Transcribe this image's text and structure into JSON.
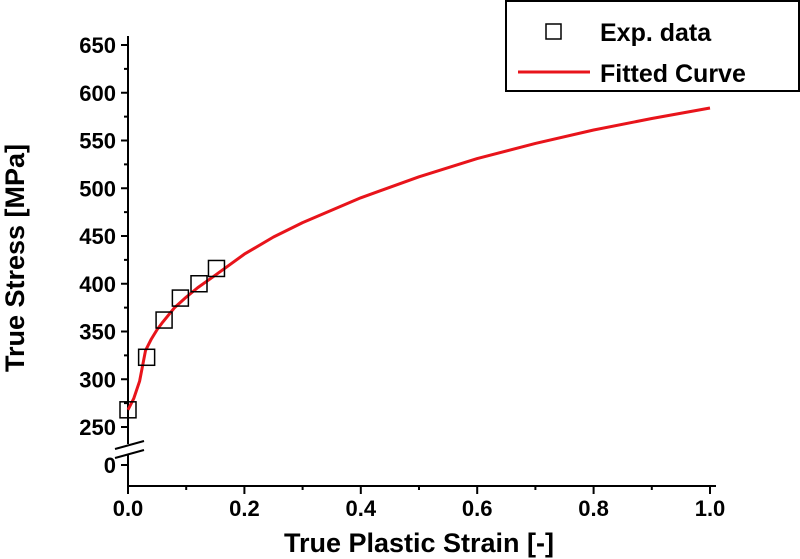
{
  "chart_data": {
    "type": "line",
    "xlabel": "True Plastic Strain [-]",
    "ylabel": "True Stress [MPa]",
    "xlim": [
      0,
      1.0
    ],
    "ylim": [
      250,
      650
    ],
    "y_axis_break": {
      "below": 250,
      "lower_label": "0"
    },
    "x_ticks": [
      "0.0",
      "0.2",
      "0.4",
      "0.6",
      "0.8",
      "1.0"
    ],
    "y_ticks": [
      "650",
      "600",
      "550",
      "500",
      "450",
      "400",
      "350",
      "300",
      "250"
    ],
    "legend": {
      "placement": "top-right"
    },
    "series": [
      {
        "name": "Exp. data",
        "kind": "scatter",
        "marker": "open-square",
        "color": "#000000",
        "x": [
          0.0,
          0.032,
          0.062,
          0.09,
          0.122,
          0.152
        ],
        "y": [
          268,
          323,
          362,
          385,
          400,
          416
        ]
      },
      {
        "name": "Fitted Curve",
        "kind": "line",
        "color": "#e8141b",
        "x": [
          0.0,
          0.01,
          0.02,
          0.03,
          0.04,
          0.05,
          0.06,
          0.08,
          0.1,
          0.12,
          0.15,
          0.2,
          0.25,
          0.3,
          0.4,
          0.5,
          0.6,
          0.7,
          0.8,
          0.9,
          1.0
        ],
        "y": [
          268,
          280,
          298,
          330,
          342,
          352,
          360,
          375,
          386,
          396,
          409,
          431,
          449,
          464,
          490,
          512,
          531,
          547,
          561,
          573,
          584
        ]
      }
    ]
  }
}
